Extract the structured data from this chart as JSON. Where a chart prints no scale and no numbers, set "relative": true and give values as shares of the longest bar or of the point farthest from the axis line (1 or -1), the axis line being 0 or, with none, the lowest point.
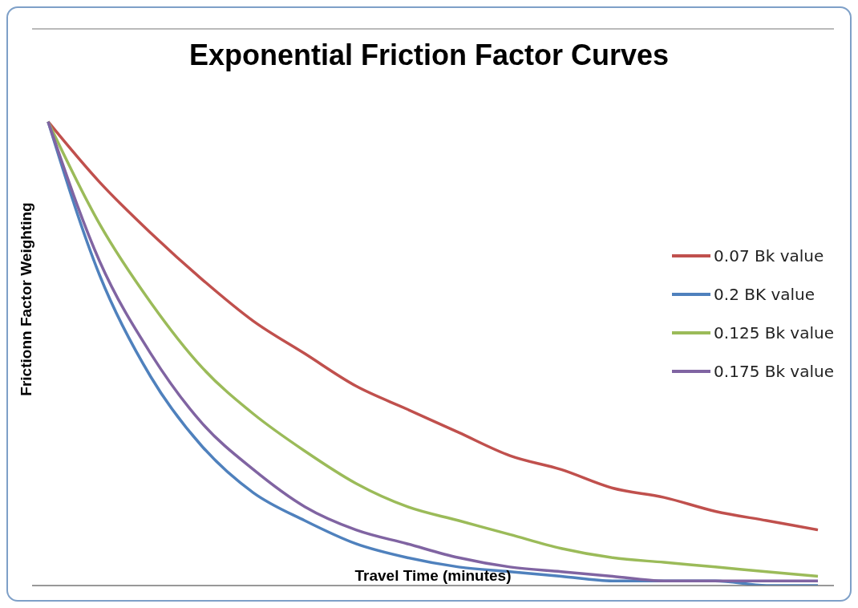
{
  "chart_data": {
    "type": "line",
    "title": "Exponential Friction Factor Curves",
    "xlabel": "Travel Time (minutes)",
    "ylabel": "Frictionn Factor Weighting",
    "relative": true,
    "grid": "y",
    "legend": "right",
    "marker": "none",
    "line_style": "solid",
    "categories": [
      null,
      null,
      null,
      null,
      null,
      null,
      null,
      null,
      null,
      null,
      null,
      null,
      null,
      null,
      null,
      null
    ],
    "series": [
      {
        "name": "0.07 Bk value",
        "color": "#c0504d",
        "values": [
          1,
          0.87,
          0.76,
          0.66,
          0.57,
          0.5,
          0.43,
          0.38,
          0.33,
          0.28,
          0.25,
          0.21,
          0.19,
          0.16,
          0.14,
          0.12
        ]
      },
      {
        "name": "0.2 BK value",
        "color": "#4f81bd",
        "values": [
          1,
          0.67,
          0.45,
          0.3,
          0.2,
          0.14,
          0.09,
          0.06,
          0.04,
          0.03,
          0.02,
          0.01,
          0.01,
          0.01,
          0,
          0
        ]
      },
      {
        "name": "0.125 Bk value",
        "color": "#9bbb59",
        "values": [
          1,
          0.78,
          0.61,
          0.47,
          0.37,
          0.29,
          0.22,
          0.17,
          0.14,
          0.11,
          0.08,
          0.06,
          0.05,
          0.04,
          0.03,
          0.02
        ]
      },
      {
        "name": "0.175 Bk value",
        "color": "#8064a2",
        "values": [
          1,
          0.7,
          0.5,
          0.35,
          0.25,
          0.17,
          0.12,
          0.09,
          0.06,
          0.04,
          0.03,
          0.02,
          0.01,
          0.01,
          0.01,
          0.01
        ]
      }
    ]
  }
}
